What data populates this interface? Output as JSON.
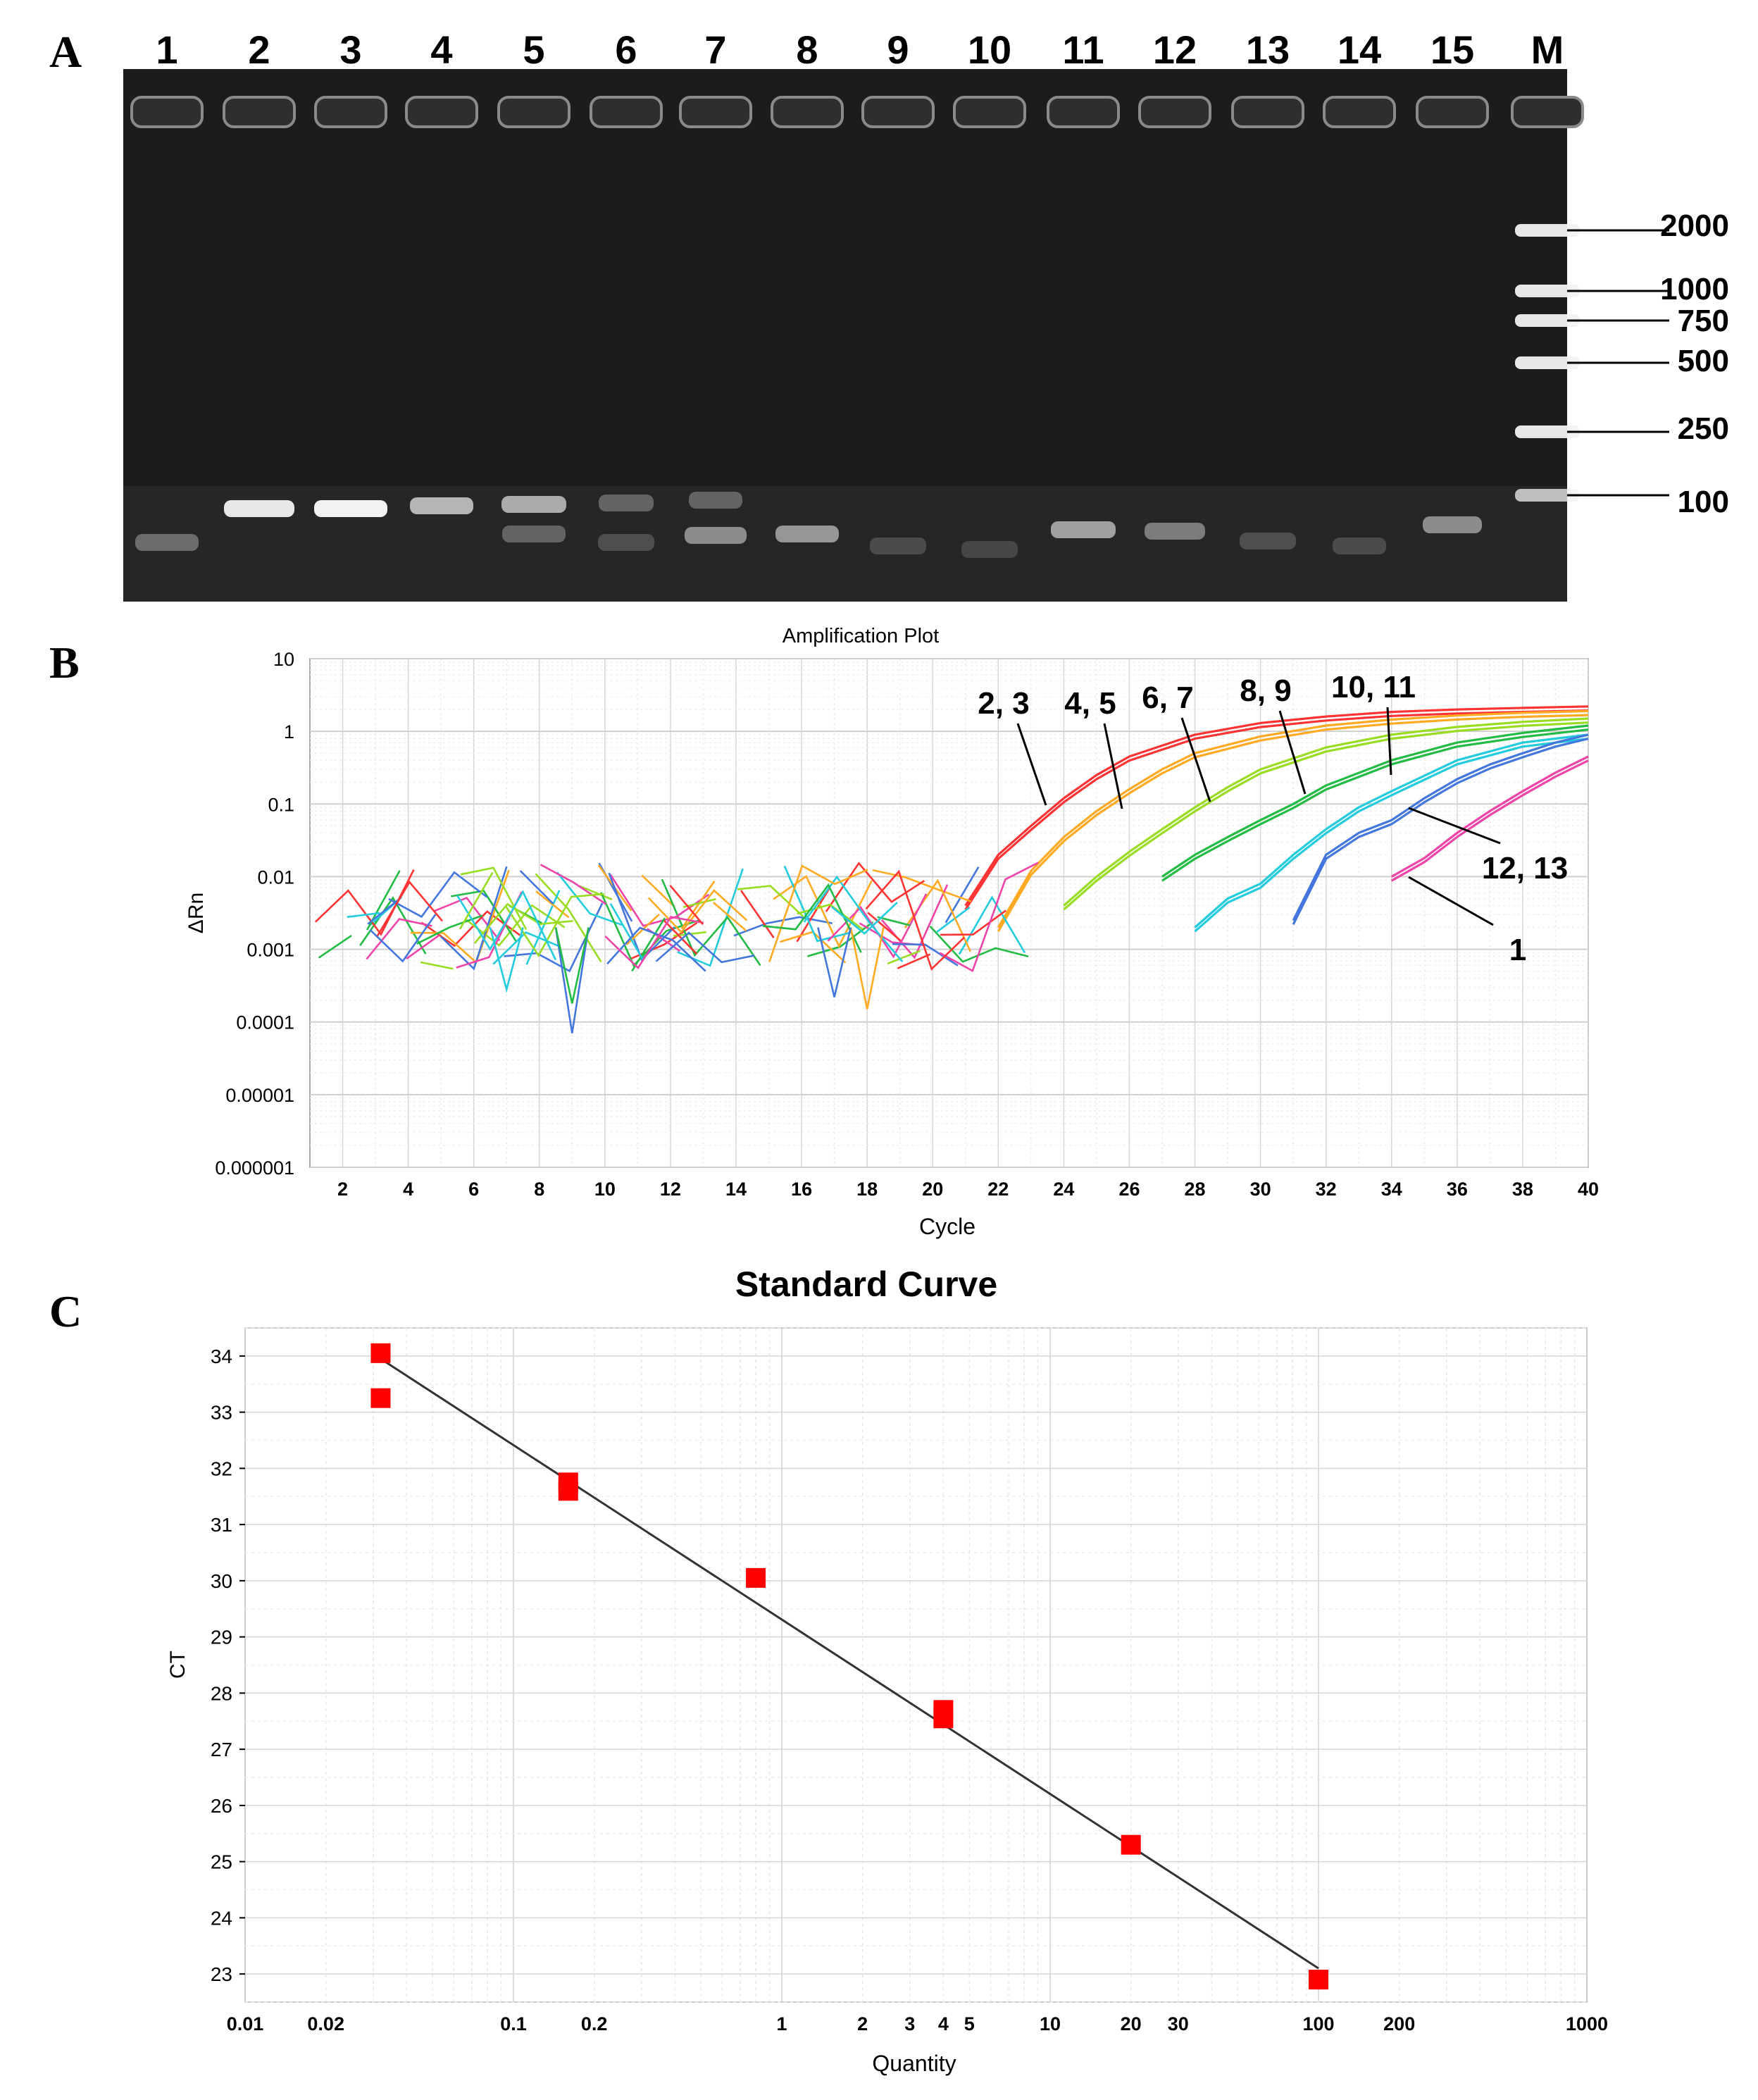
{
  "panels": {
    "A": "A",
    "B": "B",
    "C": "C"
  },
  "gel": {
    "lane_labels": [
      "1",
      "2",
      "3",
      "4",
      "5",
      "6",
      "7",
      "8",
      "9",
      "10",
      "11",
      "12",
      "13",
      "14",
      "15",
      "M"
    ],
    "marker_sizes": [
      "2000",
      "1000",
      "750",
      "500",
      "250",
      "100"
    ],
    "colors": {
      "background": "#1c1c1c",
      "band": "#f2f2f2"
    }
  },
  "chart_data": [
    {
      "type": "line",
      "title": "Amplification Plot",
      "xlabel": "Cycle",
      "ylabel": "ΔRn",
      "xlim": [
        1,
        40
      ],
      "ylim": [
        1e-06,
        10
      ],
      "yscale": "log",
      "grid": true,
      "x_ticks": [
        2,
        4,
        6,
        8,
        10,
        12,
        14,
        16,
        18,
        20,
        22,
        24,
        26,
        28,
        30,
        32,
        34,
        36,
        38,
        40
      ],
      "y_ticks": [
        "10",
        "1",
        "0.1",
        "0.01",
        "0.001",
        "0.0001",
        "0.00001",
        "0.000001"
      ],
      "series": [
        {
          "color": "#ff3333",
          "x": [
            21,
            22,
            23,
            24,
            25,
            26,
            28,
            30,
            32,
            34,
            36,
            38,
            40
          ],
          "y": [
            0.004,
            0.02,
            0.05,
            0.12,
            0.25,
            0.45,
            0.9,
            1.3,
            1.6,
            1.85,
            2.0,
            2.1,
            2.2
          ]
        },
        {
          "color": "#ffaa22",
          "x": [
            22,
            23,
            24,
            25,
            26,
            27,
            28,
            30,
            32,
            34,
            36,
            38,
            40
          ],
          "y": [
            0.002,
            0.012,
            0.035,
            0.08,
            0.16,
            0.3,
            0.5,
            0.85,
            1.2,
            1.45,
            1.65,
            1.8,
            1.9
          ]
        },
        {
          "color": "#99dd22",
          "x": [
            24,
            25,
            26,
            27,
            28,
            29,
            30,
            32,
            34,
            36,
            38,
            40
          ],
          "y": [
            0.004,
            0.01,
            0.022,
            0.045,
            0.09,
            0.17,
            0.3,
            0.6,
            0.9,
            1.15,
            1.35,
            1.5
          ]
        },
        {
          "color": "#22bb44",
          "x": [
            27,
            28,
            29,
            30,
            31,
            32,
            34,
            36,
            38,
            40
          ],
          "y": [
            0.01,
            0.02,
            0.035,
            0.06,
            0.1,
            0.18,
            0.4,
            0.7,
            0.95,
            1.2
          ]
        },
        {
          "color": "#22ccdd",
          "x": [
            28,
            29,
            30,
            31,
            32,
            33,
            34,
            36,
            38,
            40
          ],
          "y": [
            0.002,
            0.005,
            0.008,
            0.02,
            0.045,
            0.09,
            0.15,
            0.4,
            0.7,
            0.9
          ]
        },
        {
          "color": "#4477dd",
          "x": [
            31,
            32,
            33,
            34,
            35,
            36,
            37,
            38,
            39,
            40
          ],
          "y": [
            0.0025,
            0.02,
            0.04,
            0.06,
            0.12,
            0.22,
            0.35,
            0.5,
            0.7,
            0.9
          ]
        },
        {
          "color": "#ee44aa",
          "x": [
            34,
            35,
            36,
            37,
            38,
            39,
            40
          ],
          "y": [
            0.01,
            0.018,
            0.04,
            0.08,
            0.15,
            0.27,
            0.45
          ]
        }
      ],
      "annotations": [
        "2, 3",
        "4, 5",
        "6, 7",
        "8, 9",
        "10, 11",
        "12, 13",
        "1"
      ]
    },
    {
      "type": "scatter",
      "title": "Standard Curve",
      "xlabel": "Quantity",
      "ylabel": "CT",
      "xscale": "log",
      "xlim": [
        0.01,
        1000
      ],
      "ylim": [
        22.5,
        34.5
      ],
      "grid": true,
      "x_tick_labels": [
        "0.01",
        "0.02",
        "0.1",
        "0.2",
        "1",
        "2",
        "3",
        "4",
        "5",
        "10",
        "20",
        "30",
        "100",
        "200",
        "1000"
      ],
      "x_tick_values": [
        0.01,
        0.02,
        0.1,
        0.2,
        1,
        2,
        3,
        4,
        5,
        10,
        20,
        30,
        100,
        200,
        1000
      ],
      "y_ticks": [
        23,
        24,
        25,
        26,
        27,
        28,
        29,
        30,
        31,
        32,
        33,
        34
      ],
      "points": {
        "x": [
          0.032,
          0.032,
          0.16,
          0.16,
          0.8,
          4,
          4,
          20,
          100
        ],
        "y": [
          34.05,
          33.25,
          31.75,
          31.6,
          30.05,
          27.7,
          27.55,
          25.3,
          22.9
        ]
      },
      "fit_line": {
        "x": [
          0.032,
          100
        ],
        "y": [
          33.95,
          23.1
        ]
      },
      "colors": {
        "points": "#ff0000",
        "line": "#333333"
      }
    }
  ]
}
